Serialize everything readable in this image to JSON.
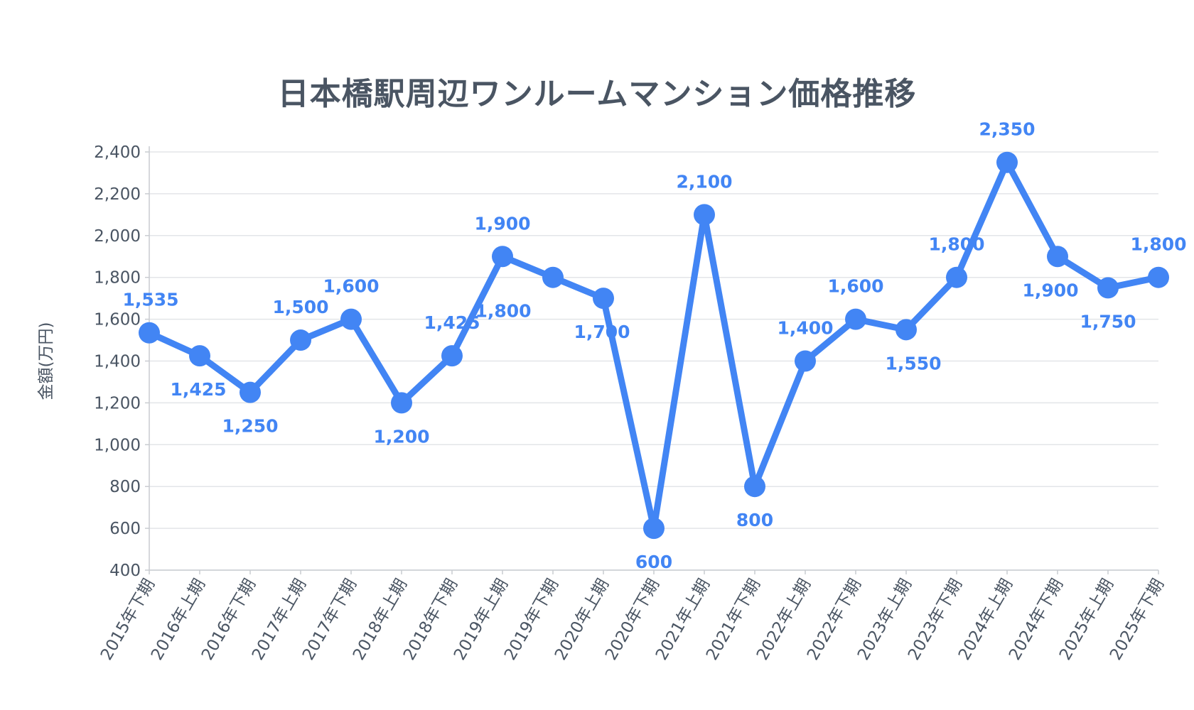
{
  "chart_data": {
    "type": "line",
    "title": "日本橋駅周辺ワンルームマンション価格推移",
    "ylabel": "金額(万円)",
    "xlabel": "",
    "ylim": [
      400,
      2400
    ],
    "y_ticks": [
      "2,400",
      "2,200",
      "2,000",
      "1,800",
      "1,600",
      "1,400",
      "1,200",
      "1,000",
      "800",
      "600",
      "400"
    ],
    "y_tick_values": [
      2400,
      2200,
      2000,
      1800,
      1600,
      1400,
      1200,
      1000,
      800,
      600,
      400
    ],
    "grid": true,
    "color": "#4285f4",
    "categories": [
      "2015年下期",
      "2016年上期",
      "2016年下期",
      "2017年上期",
      "2017年下期",
      "2018年上期",
      "2018年下期",
      "2019年上期",
      "2019年下期",
      "2020年上期",
      "2020年下期",
      "2021年上期",
      "2021年下期",
      "2022年上期",
      "2022年下期",
      "2023年上期",
      "2023年下期",
      "2024年上期",
      "2024年下期",
      "2025年上期",
      "2025年下期"
    ],
    "values": [
      1535,
      1425,
      1250,
      1500,
      1600,
      1200,
      1425,
      1900,
      1800,
      1700,
      600,
      2100,
      800,
      1400,
      1600,
      1550,
      1800,
      2350,
      1900,
      1750,
      1800
    ],
    "data_labels": [
      "1,535",
      "1,425",
      "1,250",
      "1,500",
      "1,600",
      "1,200",
      "1,425",
      "1,900",
      "1,800",
      "1,700",
      "600",
      "2,100",
      "800",
      "1,400",
      "1,600",
      "1,550",
      "1,800",
      "2,350",
      "1,900",
      "1,750",
      "1,800"
    ]
  }
}
